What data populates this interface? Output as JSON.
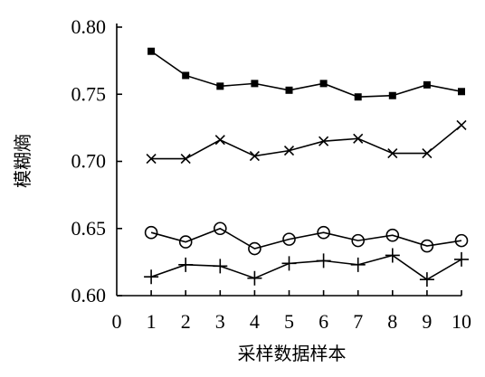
{
  "chart_data": {
    "type": "line",
    "xlabel": "采样数据样本",
    "ylabel": "模糊熵",
    "xlim": [
      0,
      10
    ],
    "ylim": [
      0.6,
      0.8
    ],
    "x_ticks": [
      "0",
      "1",
      "2",
      "3",
      "4",
      "5",
      "6",
      "7",
      "8",
      "9",
      "10"
    ],
    "y_ticks": [
      "0.60",
      "0.65",
      "0.70",
      "0.75",
      "0.80"
    ],
    "y_tick_values": [
      0.6,
      0.65,
      0.7,
      0.75,
      0.8
    ],
    "x": [
      1,
      2,
      3,
      4,
      5,
      6,
      7,
      8,
      9,
      10
    ],
    "grid": false,
    "series": [
      {
        "marker": "filled-diamond",
        "values": [
          0.782,
          0.764,
          0.756,
          0.758,
          0.753,
          0.758,
          0.748,
          0.749,
          0.757,
          0.752
        ]
      },
      {
        "marker": "x",
        "values": [
          0.702,
          0.702,
          0.716,
          0.704,
          0.708,
          0.715,
          0.717,
          0.706,
          0.706,
          0.727
        ]
      },
      {
        "marker": "circle",
        "values": [
          0.647,
          0.64,
          0.65,
          0.635,
          0.642,
          0.647,
          0.641,
          0.645,
          0.637,
          0.641
        ]
      },
      {
        "marker": "plus",
        "values": [
          0.614,
          0.623,
          0.622,
          0.613,
          0.624,
          0.626,
          0.623,
          0.63,
          0.612,
          0.627
        ]
      }
    ]
  }
}
